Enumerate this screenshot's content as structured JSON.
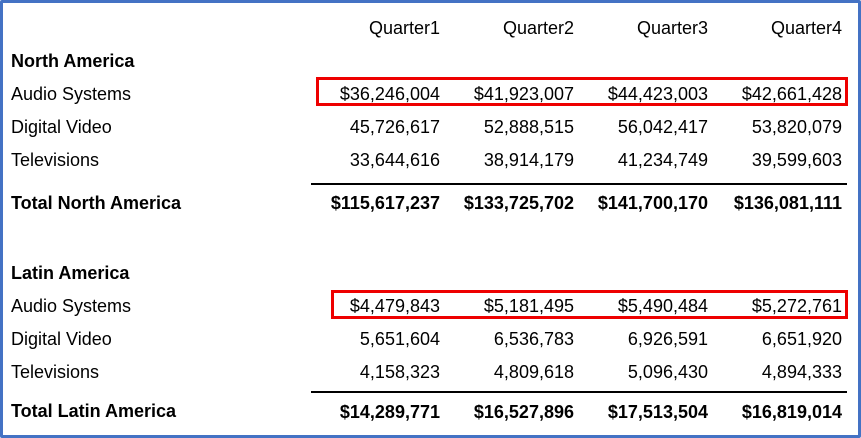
{
  "chart_data": {
    "type": "table",
    "columns": [
      "Quarter1",
      "Quarter2",
      "Quarter3",
      "Quarter4"
    ],
    "sections": [
      {
        "name": "North America",
        "rows": [
          {
            "label": "Audio Systems",
            "values": [
              "$36,246,004",
              "$41,923,007",
              "$44,423,003",
              "$42,661,428"
            ],
            "highlighted": true
          },
          {
            "label": "Digital Video",
            "values": [
              "45,726,617",
              "52,888,515",
              "56,042,417",
              "53,820,079"
            ],
            "highlighted": false
          },
          {
            "label": "Televisions",
            "values": [
              "33,644,616",
              "38,914,179",
              "41,234,749",
              "39,599,603"
            ],
            "highlighted": false
          }
        ],
        "total": {
          "label": "Total North America",
          "values": [
            "$115,617,237",
            "$133,725,702",
            "$141,700,170",
            "$136,081,111"
          ]
        }
      },
      {
        "name": "Latin America",
        "rows": [
          {
            "label": "Audio Systems",
            "values": [
              "$4,479,843",
              "$5,181,495",
              "$5,490,484",
              "$5,272,761"
            ],
            "highlighted": true
          },
          {
            "label": "Digital Video",
            "values": [
              "5,651,604",
              "6,536,783",
              "6,926,591",
              "6,651,920"
            ],
            "highlighted": false
          },
          {
            "label": "Televisions",
            "values": [
              "4,158,323",
              "4,809,618",
              "5,096,430",
              "4,894,333"
            ],
            "highlighted": false
          }
        ],
        "total": {
          "label": "Total Latin America",
          "values": [
            "$14,289,771",
            "$16,527,896",
            "$17,513,504",
            "$16,819,014"
          ]
        }
      }
    ],
    "annotations": [
      {
        "type": "highlight-box",
        "target": "North America Audio Systems values"
      },
      {
        "type": "highlight-box",
        "target": "Latin America Audio Systems values"
      }
    ],
    "layout": {
      "grid": "off",
      "value_alignment": "right",
      "header_alignment": "right"
    }
  },
  "colors": {
    "frame-blue": "#4472C4",
    "highlight-red": "#EE0000",
    "rule-black": "#000000",
    "text": "#000000"
  }
}
